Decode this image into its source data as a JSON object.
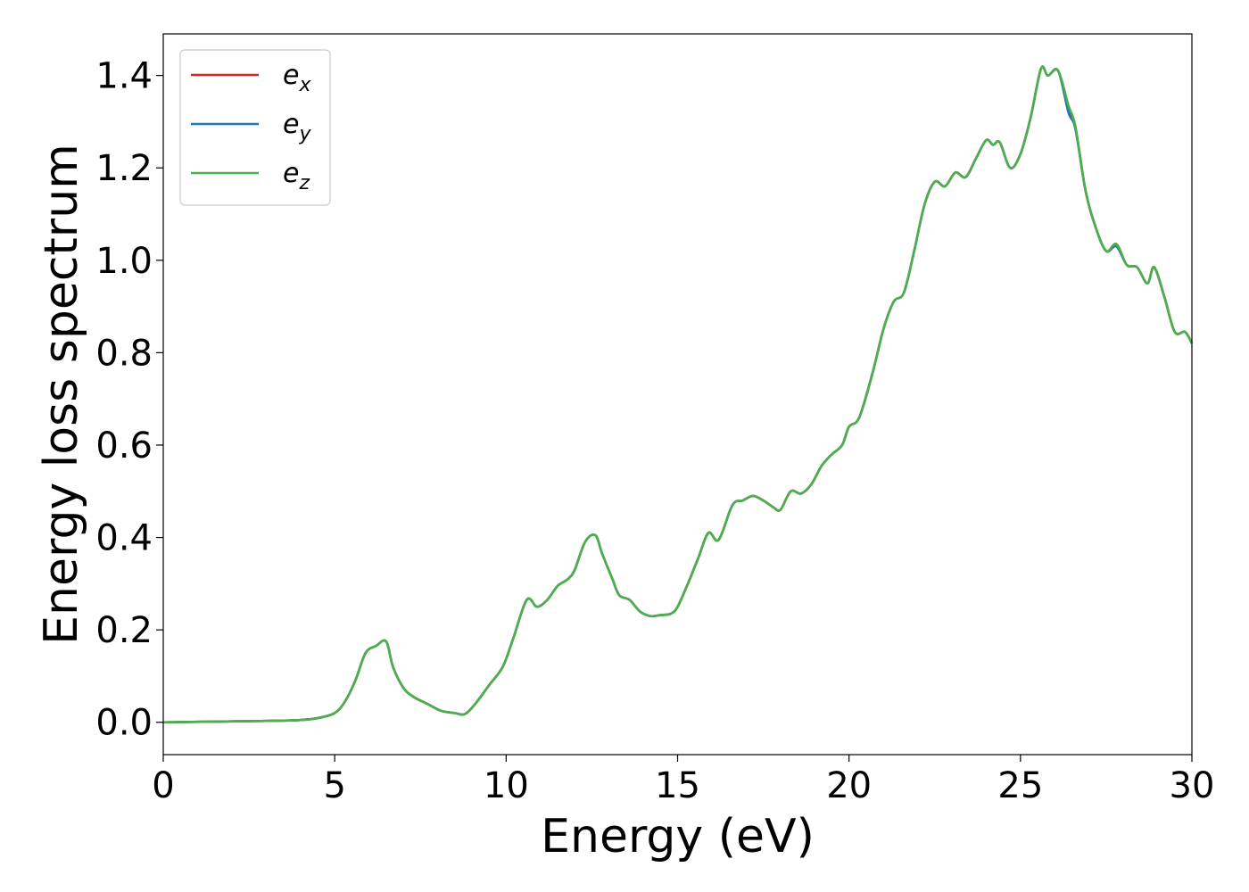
{
  "chart_data": {
    "type": "line",
    "xlabel": "Energy (eV)",
    "ylabel": "Energy loss spectrum",
    "xlim": [
      0,
      30
    ],
    "ylim": [
      -0.07,
      1.49
    ],
    "x_ticks": [
      0,
      5,
      10,
      15,
      20,
      25,
      30
    ],
    "x_tick_labels": [
      "0",
      "5",
      "10",
      "15",
      "20",
      "25",
      "30"
    ],
    "y_ticks": [
      0.0,
      0.2,
      0.4,
      0.6,
      0.8,
      1.0,
      1.2,
      1.4
    ],
    "y_tick_labels": [
      "0.0",
      "0.2",
      "0.4",
      "0.6",
      "0.8",
      "1.0",
      "1.2",
      "1.4"
    ],
    "grid": false,
    "legend_position": "top-left",
    "series": [
      {
        "name": "e_x",
        "legend_base": "e",
        "legend_sub": "x",
        "color": "#d62728",
        "x": [
          0,
          2,
          3,
          4,
          4.5,
          5,
          5.3,
          5.6,
          5.9,
          6.2,
          6.5,
          6.7,
          7.0,
          7.3,
          7.7,
          8.1,
          8.5,
          8.8,
          9.1,
          9.5,
          9.9,
          10.2,
          10.6,
          10.9,
          11.2,
          11.5,
          11.8,
          12.0,
          12.3,
          12.6,
          12.8,
          13.1,
          13.3,
          13.6,
          13.9,
          14.2,
          14.5,
          14.8,
          15.0,
          15.3,
          15.6,
          15.9,
          16.2,
          16.6,
          16.9,
          17.2,
          17.5,
          17.8,
          18.0,
          18.3,
          18.6,
          18.9,
          19.2,
          19.5,
          19.8,
          20.0,
          20.3,
          20.7,
          21.0,
          21.3,
          21.6,
          21.9,
          22.2,
          22.5,
          22.8,
          23.1,
          23.4,
          23.7,
          24.0,
          24.2,
          24.4,
          24.7,
          25.0,
          25.3,
          25.6,
          25.8,
          26.1,
          26.4,
          26.6,
          26.9,
          27.2,
          27.5,
          27.8,
          28.1,
          28.4,
          28.7,
          28.9,
          29.2,
          29.5,
          29.8,
          30.0
        ],
        "y": [
          0,
          0.002,
          0.003,
          0.005,
          0.009,
          0.02,
          0.045,
          0.09,
          0.15,
          0.165,
          0.175,
          0.12,
          0.075,
          0.055,
          0.04,
          0.025,
          0.02,
          0.018,
          0.04,
          0.08,
          0.12,
          0.18,
          0.265,
          0.25,
          0.265,
          0.295,
          0.31,
          0.33,
          0.39,
          0.405,
          0.365,
          0.31,
          0.275,
          0.265,
          0.24,
          0.23,
          0.232,
          0.235,
          0.25,
          0.3,
          0.355,
          0.41,
          0.395,
          0.47,
          0.48,
          0.49,
          0.48,
          0.465,
          0.46,
          0.5,
          0.495,
          0.515,
          0.555,
          0.58,
          0.6,
          0.64,
          0.66,
          0.76,
          0.85,
          0.91,
          0.93,
          1.02,
          1.12,
          1.17,
          1.16,
          1.19,
          1.18,
          1.22,
          1.26,
          1.25,
          1.255,
          1.2,
          1.23,
          1.31,
          1.415,
          1.4,
          1.41,
          1.33,
          1.29,
          1.15,
          1.07,
          1.02,
          1.035,
          0.99,
          0.985,
          0.95,
          0.985,
          0.92,
          0.845,
          0.845,
          0.82
        ]
      },
      {
        "name": "e_y",
        "legend_base": "e",
        "legend_sub": "y",
        "color": "#1f77b4",
        "x": [
          0,
          2,
          3,
          4,
          4.5,
          5,
          5.3,
          5.6,
          5.9,
          6.2,
          6.5,
          6.7,
          7.0,
          7.3,
          7.7,
          8.1,
          8.5,
          8.8,
          9.1,
          9.5,
          9.9,
          10.2,
          10.6,
          10.9,
          11.2,
          11.5,
          11.8,
          12.0,
          12.3,
          12.6,
          12.8,
          13.1,
          13.3,
          13.6,
          13.9,
          14.2,
          14.5,
          14.8,
          15.0,
          15.3,
          15.6,
          15.9,
          16.2,
          16.6,
          16.9,
          17.2,
          17.5,
          17.8,
          18.0,
          18.3,
          18.6,
          18.9,
          19.2,
          19.5,
          19.8,
          20.0,
          20.3,
          20.7,
          21.0,
          21.3,
          21.6,
          21.9,
          22.2,
          22.5,
          22.8,
          23.1,
          23.4,
          23.7,
          24.0,
          24.2,
          24.4,
          24.7,
          25.0,
          25.3,
          25.6,
          25.8,
          26.1,
          26.4,
          26.6,
          26.9,
          27.2,
          27.5,
          27.8,
          28.1,
          28.4,
          28.7,
          28.9,
          29.2,
          29.5,
          29.8,
          30.0
        ],
        "y": [
          0,
          0.002,
          0.003,
          0.005,
          0.009,
          0.02,
          0.045,
          0.09,
          0.15,
          0.165,
          0.175,
          0.12,
          0.075,
          0.055,
          0.04,
          0.025,
          0.02,
          0.018,
          0.04,
          0.08,
          0.12,
          0.18,
          0.265,
          0.25,
          0.265,
          0.295,
          0.31,
          0.33,
          0.39,
          0.405,
          0.365,
          0.31,
          0.275,
          0.265,
          0.24,
          0.23,
          0.232,
          0.235,
          0.25,
          0.3,
          0.355,
          0.41,
          0.395,
          0.47,
          0.48,
          0.49,
          0.48,
          0.465,
          0.46,
          0.5,
          0.495,
          0.515,
          0.555,
          0.58,
          0.6,
          0.64,
          0.66,
          0.76,
          0.85,
          0.91,
          0.93,
          1.02,
          1.12,
          1.17,
          1.16,
          1.19,
          1.18,
          1.22,
          1.26,
          1.25,
          1.255,
          1.2,
          1.23,
          1.31,
          1.415,
          1.4,
          1.41,
          1.32,
          1.285,
          1.15,
          1.07,
          1.02,
          1.03,
          0.99,
          0.985,
          0.95,
          0.985,
          0.92,
          0.845,
          0.845,
          0.82
        ]
      },
      {
        "name": "e_z",
        "legend_base": "e",
        "legend_sub": "z",
        "color": "#4daf4a",
        "x": [
          0,
          2,
          3,
          4,
          4.5,
          5,
          5.3,
          5.6,
          5.9,
          6.2,
          6.5,
          6.7,
          7.0,
          7.3,
          7.7,
          8.1,
          8.5,
          8.8,
          9.1,
          9.5,
          9.9,
          10.2,
          10.6,
          10.9,
          11.2,
          11.5,
          11.8,
          12.0,
          12.3,
          12.6,
          12.8,
          13.1,
          13.3,
          13.6,
          13.9,
          14.2,
          14.5,
          14.8,
          15.0,
          15.3,
          15.6,
          15.9,
          16.2,
          16.6,
          16.9,
          17.2,
          17.5,
          17.8,
          18.0,
          18.3,
          18.6,
          18.9,
          19.2,
          19.5,
          19.8,
          20.0,
          20.3,
          20.7,
          21.0,
          21.3,
          21.6,
          21.9,
          22.2,
          22.5,
          22.8,
          23.1,
          23.4,
          23.7,
          24.0,
          24.2,
          24.4,
          24.7,
          25.0,
          25.3,
          25.6,
          25.8,
          26.1,
          26.4,
          26.6,
          26.9,
          27.2,
          27.5,
          27.8,
          28.1,
          28.4,
          28.7,
          28.9,
          29.2,
          29.5,
          29.8,
          30.0
        ],
        "y": [
          0,
          0.002,
          0.003,
          0.005,
          0.009,
          0.02,
          0.045,
          0.09,
          0.15,
          0.165,
          0.175,
          0.12,
          0.075,
          0.055,
          0.04,
          0.025,
          0.02,
          0.018,
          0.04,
          0.08,
          0.12,
          0.18,
          0.265,
          0.25,
          0.265,
          0.295,
          0.31,
          0.33,
          0.39,
          0.405,
          0.365,
          0.31,
          0.275,
          0.265,
          0.24,
          0.23,
          0.232,
          0.235,
          0.25,
          0.3,
          0.355,
          0.41,
          0.395,
          0.47,
          0.48,
          0.49,
          0.48,
          0.465,
          0.46,
          0.5,
          0.495,
          0.515,
          0.555,
          0.58,
          0.6,
          0.64,
          0.66,
          0.76,
          0.85,
          0.91,
          0.93,
          1.02,
          1.12,
          1.17,
          1.16,
          1.19,
          1.18,
          1.22,
          1.26,
          1.25,
          1.255,
          1.2,
          1.23,
          1.31,
          1.415,
          1.4,
          1.41,
          1.335,
          1.29,
          1.15,
          1.07,
          1.02,
          1.035,
          0.99,
          0.985,
          0.95,
          0.985,
          0.92,
          0.845,
          0.845,
          0.82
        ]
      }
    ]
  }
}
